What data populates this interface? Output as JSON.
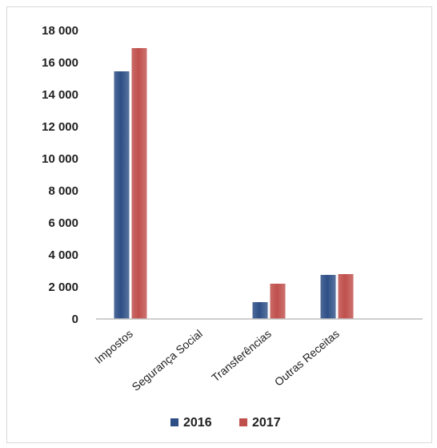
{
  "chart_data": {
    "type": "bar",
    "title": "",
    "xlabel": "",
    "ylabel": "",
    "categories": [
      "Impostos",
      "Segurança Social",
      "Transferências",
      "Outras Receitas"
    ],
    "series": [
      {
        "name": "2016",
        "color": "#2e4f86",
        "values": [
          15450,
          0,
          1050,
          2750
        ]
      },
      {
        "name": "2017",
        "color": "#c0504d",
        "values": [
          16900,
          0,
          2200,
          2800
        ]
      }
    ],
    "ylim": [
      0,
      18000
    ],
    "yticks": [
      0,
      2000,
      4000,
      6000,
      8000,
      10000,
      12000,
      14000,
      16000,
      18000
    ],
    "ytick_labels": [
      "0",
      "2 000",
      "4 000",
      "6 000",
      "8 000",
      "10 000",
      "12 000",
      "14 000",
      "16 000",
      "18 000"
    ],
    "grid": false,
    "legend_position": "bottom"
  }
}
